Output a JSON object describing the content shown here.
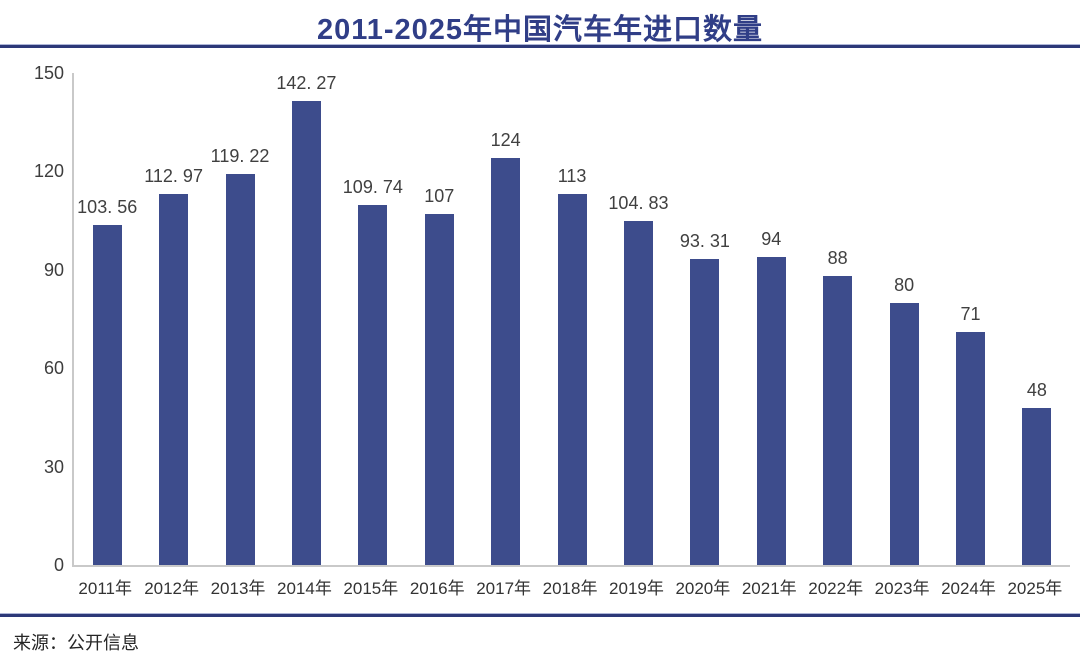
{
  "title": "2011-2025年中国汽车年进口数量",
  "footer": {
    "source": "来源：公开信息"
  },
  "colors": {
    "bar": "#3D4C8C",
    "title": "#303E87",
    "rule": "#2C3878",
    "axis": "#C9C9C9",
    "label": "#404040"
  },
  "chart_data": {
    "type": "bar",
    "title": "2011-2025年中国汽车年进口数量",
    "categories": [
      "2011年",
      "2012年",
      "2013年",
      "2014年",
      "2015年",
      "2016年",
      "2017年",
      "2018年",
      "2019年",
      "2020年",
      "2021年",
      "2022年",
      "2023年",
      "2024年",
      "2025年"
    ],
    "values": [
      103.56,
      112.97,
      119.22,
      142.27,
      109.74,
      107,
      124,
      113,
      104.83,
      93.31,
      94,
      88,
      80,
      71,
      48
    ],
    "value_labels": [
      "103. 56",
      "112. 97",
      "119. 22",
      "142. 27",
      "109. 74",
      "107",
      "124",
      "113",
      "104. 83",
      "93. 31",
      "94",
      "88",
      "80",
      "71",
      "48"
    ],
    "yticks": [
      0,
      30,
      60,
      90,
      120,
      150
    ],
    "ylim": [
      0,
      150
    ],
    "xlabel": "",
    "ylabel": "",
    "grid": false,
    "legend": false,
    "bar_color": "#3D4C8C",
    "source": "来源：公开信息"
  }
}
